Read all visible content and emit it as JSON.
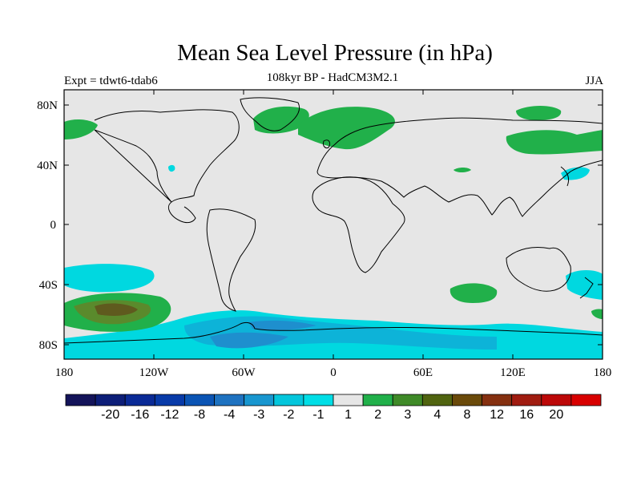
{
  "map": {
    "title": "Mean Sea Level Pressure (in hPa)",
    "subtitle": "108kyr BP - HadCM3M2.1",
    "left_label": "Expt = tdwt6-tdab6",
    "right_label": "JJA",
    "lat_ticks": [
      "80N",
      "40N",
      "0",
      "40S",
      "80S"
    ],
    "lon_ticks": [
      "180",
      "120W",
      "60W",
      "0",
      "60E",
      "120E",
      "180"
    ],
    "colors": {
      "background": "#e6e6e6",
      "green": "#21b04a",
      "cyan": "#00d8e0",
      "blue_light": "#0db3d8",
      "blue_mid": "#1e8fce",
      "olive": "#5a8a2c",
      "brown": "#5f5a1e",
      "coast": "#000000"
    }
  },
  "colorbar": {
    "labels": [
      "-20",
      "-16",
      "-12",
      "-8",
      "-4",
      "-3",
      "-2",
      "-1",
      "1",
      "2",
      "3",
      "4",
      "8",
      "12",
      "16",
      "20"
    ],
    "colors": [
      "#14145a",
      "#0d1e78",
      "#0a2a96",
      "#083aa8",
      "#0b54b4",
      "#1e72c0",
      "#1896cf",
      "#04c6dc",
      "#00dee6",
      "#e6e6e6",
      "#21b04a",
      "#3f8a28",
      "#506410",
      "#6a4a0a",
      "#853010",
      "#a01c10",
      "#bc0808",
      "#d80000"
    ]
  }
}
